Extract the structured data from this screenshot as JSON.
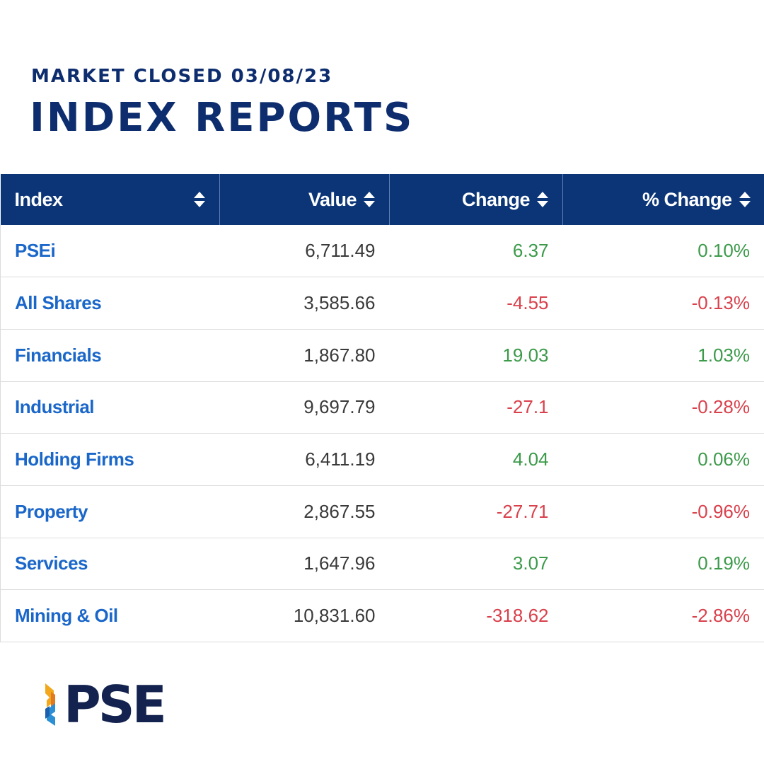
{
  "header": {
    "subtitle": "MARKET CLOSED 03/08/23",
    "title": "INDEX REPORTS"
  },
  "table": {
    "columns": [
      {
        "label": "Index",
        "sort_icon": "sort-icon"
      },
      {
        "label": "Value",
        "sort_icon": "sort-icon"
      },
      {
        "label": "Change",
        "sort_icon": "sort-icon"
      },
      {
        "label": "% Change",
        "sort_icon": "sort-icon"
      }
    ],
    "rows": [
      {
        "index": "PSEi",
        "value": "6,711.49",
        "change": "6.37",
        "pct_change": "0.10%",
        "direction": "up"
      },
      {
        "index": "All Shares",
        "value": "3,585.66",
        "change": "-4.55",
        "pct_change": "-0.13%",
        "direction": "down"
      },
      {
        "index": "Financials",
        "value": "1,867.80",
        "change": "19.03",
        "pct_change": "1.03%",
        "direction": "up"
      },
      {
        "index": "Industrial",
        "value": "9,697.79",
        "change": "-27.1",
        "pct_change": "-0.28%",
        "direction": "down"
      },
      {
        "index": "Holding Firms",
        "value": "6,411.19",
        "change": "4.04",
        "pct_change": "0.06%",
        "direction": "up"
      },
      {
        "index": "Property",
        "value": "2,867.55",
        "change": "-27.71",
        "pct_change": "-0.96%",
        "direction": "down"
      },
      {
        "index": "Services",
        "value": "1,647.96",
        "change": "3.07",
        "pct_change": "0.19%",
        "direction": "up"
      },
      {
        "index": "Mining & Oil",
        "value": "10,831.60",
        "change": "-318.62",
        "pct_change": "-2.86%",
        "direction": "down"
      }
    ]
  },
  "colors": {
    "title": "#0d2d6e",
    "header_bg": "#0b3577",
    "link": "#1a67c9",
    "positive": "#3c9a4a",
    "negative": "#d9414c"
  },
  "logo": {
    "text": "PSE",
    "icon": "pse-logo-mark-icon"
  }
}
